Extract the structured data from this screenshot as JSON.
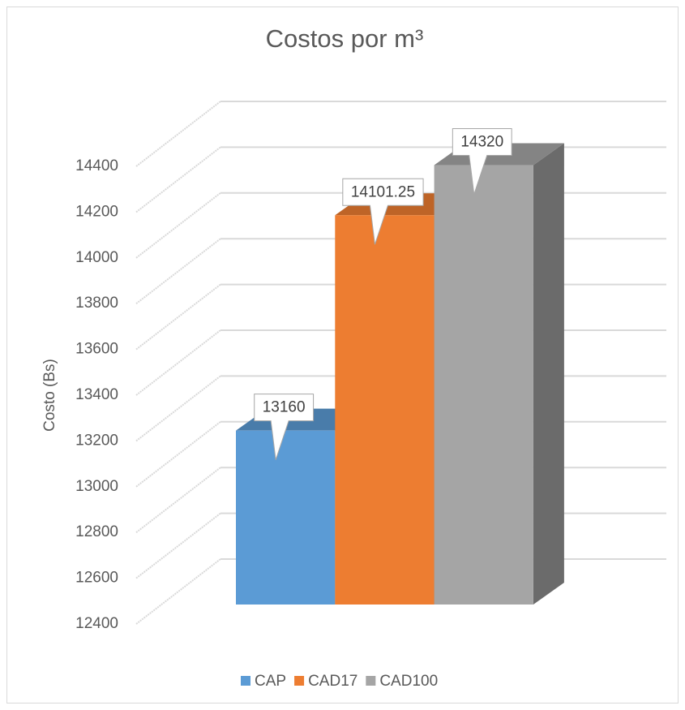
{
  "chart_data": {
    "type": "bar3d",
    "title": "Costos por m³",
    "y_label": "Costo (Bs)",
    "categories": [
      null
    ],
    "series": [
      {
        "name": "CAP",
        "color": "#5b9bd5",
        "values": [
          13160
        ]
      },
      {
        "name": "CAD17",
        "color": "#ed7d31",
        "values": [
          14101.25
        ]
      },
      {
        "name": "CAD100",
        "color": "#a5a5a5",
        "values": [
          14320
        ]
      }
    ],
    "ylim": [
      12400,
      14400
    ],
    "yticks": [
      12400,
      12600,
      12800,
      13000,
      13200,
      13400,
      13600,
      13800,
      14000,
      14200,
      14400
    ],
    "grid": true,
    "legend": "bottom",
    "data_labels": true
  }
}
